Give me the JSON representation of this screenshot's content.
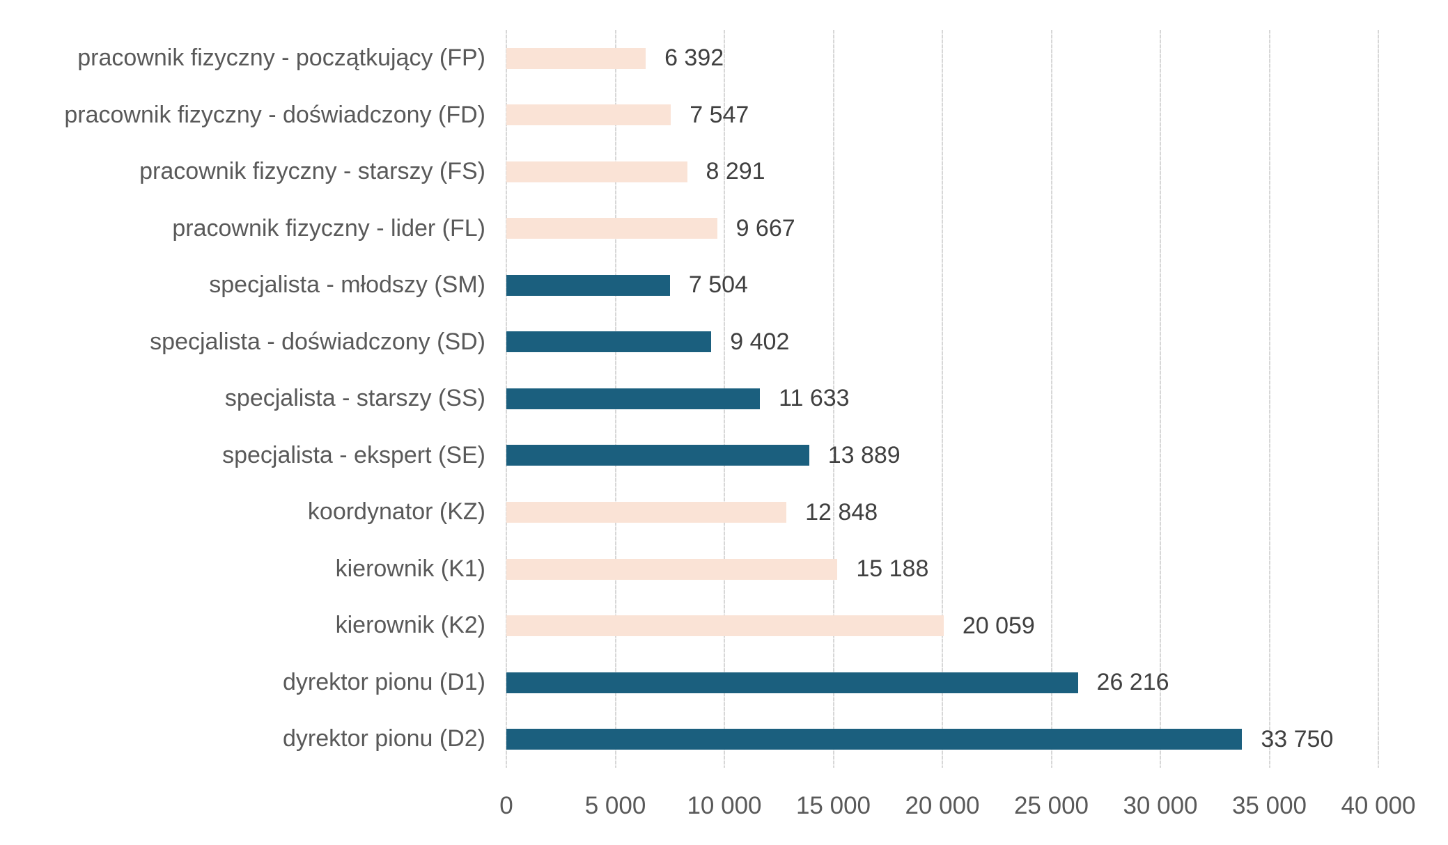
{
  "chart_data": {
    "type": "bar",
    "orientation": "horizontal",
    "title": "",
    "xlabel": "",
    "ylabel": "",
    "grid": true,
    "legend": false,
    "categories": [
      "pracownik fizyczny - początkujący (FP)",
      "pracownik fizyczny - doświadczony (FD)",
      "pracownik fizyczny - starszy (FS)",
      "pracownik fizyczny - lider (FL)",
      "specjalista - młodszy (SM)",
      "specjalista - doświadczony (SD)",
      "specjalista - starszy (SS)",
      "specjalista - ekspert (SE)",
      "koordynator (KZ)",
      "kierownik (K1)",
      "kierownik (K2)",
      "dyrektor pionu (D1)",
      "dyrektor pionu (D2)"
    ],
    "values": [
      6392,
      7547,
      8291,
      9667,
      7504,
      9402,
      11633,
      13889,
      12848,
      15188,
      20059,
      26216,
      33750
    ],
    "value_labels": [
      "6 392",
      "7 547",
      "8 291",
      "9 667",
      "7 504",
      "9 402",
      "11 633",
      "13 889",
      "12 848",
      "15 188",
      "20 059",
      "26 216",
      "33 750"
    ],
    "row_palette": [
      "peach",
      "peach",
      "peach",
      "peach",
      "teal",
      "teal",
      "teal",
      "teal",
      "peach",
      "peach",
      "peach",
      "teal",
      "teal"
    ],
    "colors": {
      "peach": "#FAE3D6",
      "teal": "#1B5F7E",
      "gridline": "#D7D7D7",
      "category_text": "#595959",
      "value_text": "#404040",
      "axis_text": "#595959"
    },
    "x_axis": {
      "min": 0,
      "max": 40000,
      "step": 5000,
      "tick_labels": [
        "0",
        "5 000",
        "10 000",
        "15 000",
        "20 000",
        "25 000",
        "30 000",
        "35 000",
        "40 000"
      ]
    }
  }
}
